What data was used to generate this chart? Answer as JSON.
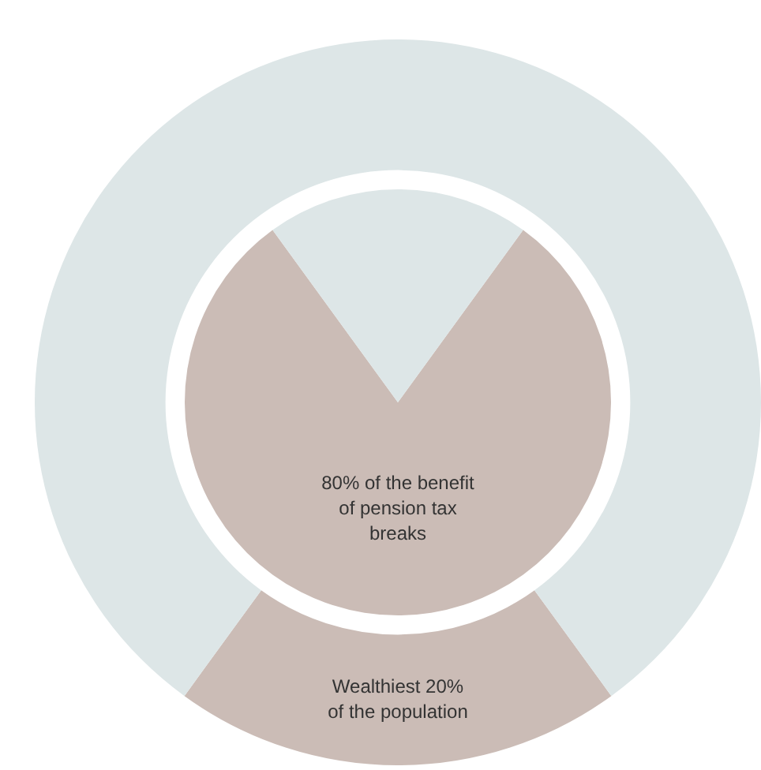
{
  "chart_data": [
    {
      "type": "donut",
      "categories": [
        "Wealthiest 20% of the population",
        null
      ],
      "values": [
        20,
        80
      ],
      "colors": [
        "#cbbcb6",
        "#dde6e7"
      ]
    },
    {
      "type": "pie",
      "categories": [
        "80% of the benefit of pension tax breaks",
        null
      ],
      "values": [
        80,
        20
      ],
      "colors": [
        "#cbbcb6",
        "#dde6e7"
      ]
    }
  ]
}
